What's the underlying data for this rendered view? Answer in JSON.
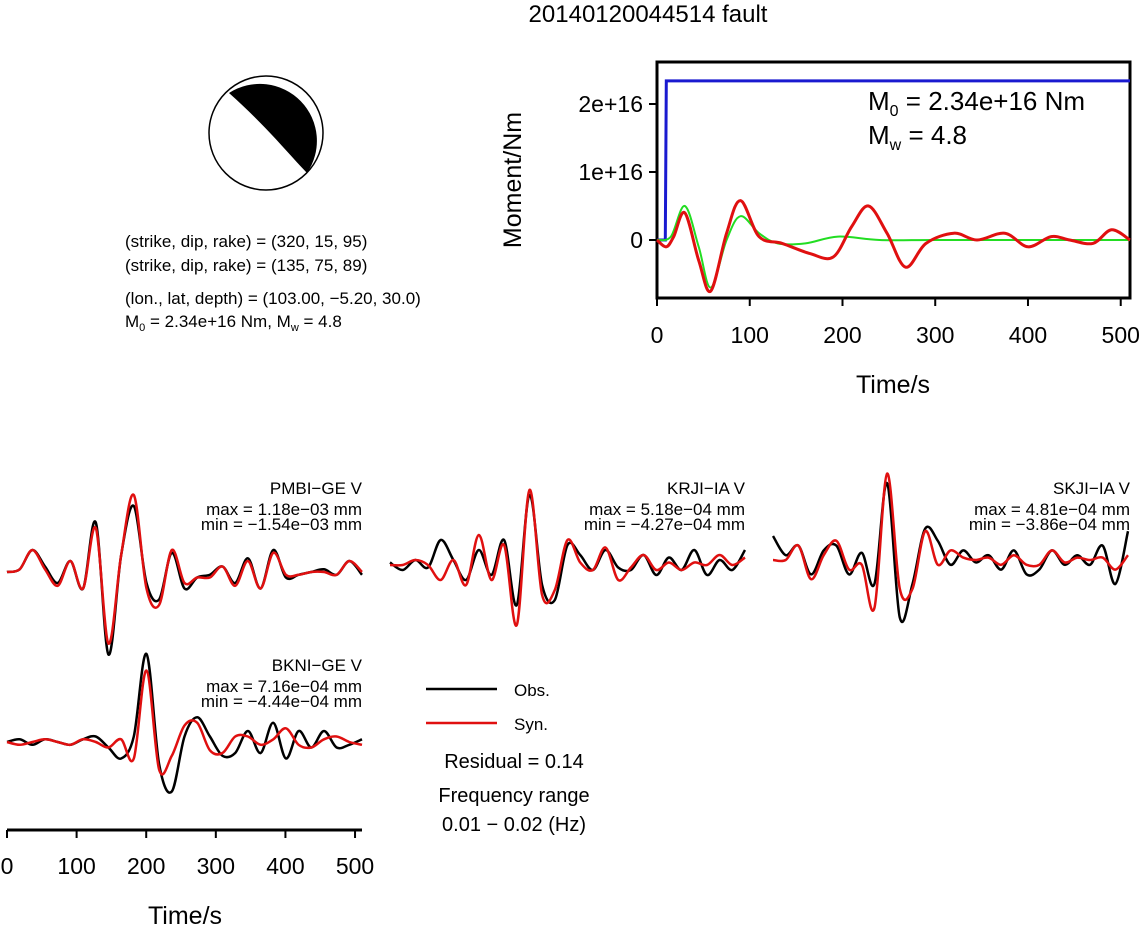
{
  "title": "20140120044514 fault",
  "beachball": {
    "plane1": "(strike, dip, rake) = (320, 15, 95)",
    "plane2": "(strike, dip, rake) = (135, 75, 89)",
    "location": "(lon., lat, depth) = (103.00, −5.20, 30.0)",
    "moment_line": {
      "m0_prefix": "M",
      "m0_sub": "0",
      "m0_value": " = 2.34e+16 Nm, M",
      "mw_sub": "w",
      "mw_value": " = 4.8"
    }
  },
  "moment_annotation": {
    "m0_prefix": "M",
    "m0_sub": "0",
    "m0_value": " = 2.34e+16 Nm",
    "mw_prefix": "M",
    "mw_sub": "w",
    "mw_value": " = 4.8"
  },
  "legend": {
    "obs": "Obs.",
    "syn": "Syn."
  },
  "residual": "Residual = 0.14",
  "freq_label": "Frequency range",
  "freq_value": "0.01 − 0.02 (Hz)",
  "colors": {
    "obs": "#000000",
    "syn": "#e01010",
    "moment": "#1a1ad0",
    "stf": "#22dd22"
  },
  "chart_data": [
    {
      "type": "line",
      "title": "",
      "xlabel": "Time/s",
      "ylabel": "Moment/Nm",
      "xlim": [
        0,
        510
      ],
      "ylim": [
        -8000000000000000.0,
        2.6e+16
      ],
      "xticks": [
        "0",
        "100",
        "200",
        "300",
        "400",
        "500"
      ],
      "yticks": [
        "0",
        "1e+16",
        "2e+16"
      ],
      "series": [
        {
          "x": [
            0,
            5,
            9,
            10,
            510
          ],
          "y": [
            0,
            0,
            0,
            2.34e+16,
            2.34e+16
          ]
        },
        {
          "x": [
            0,
            15,
            30,
            45,
            58,
            75,
            90,
            110,
            130,
            160,
            195,
            240,
            300,
            400,
            510
          ],
          "y": [
            0,
            500000000000000.0,
            5000000000000000.0,
            -1000000000000000.0,
            -7000000000000000.0,
            0,
            3500000000000000.0,
            1000000000000000.0,
            -500000000000000.0,
            -500000000000000.0,
            500000000000000.0,
            0,
            0,
            0,
            0
          ]
        },
        {
          "x": [
            0,
            10,
            18,
            30,
            45,
            58,
            75,
            90,
            110,
            135,
            165,
            190,
            210,
            228,
            248,
            268,
            290,
            320,
            345,
            375,
            400,
            425,
            445,
            470,
            490,
            510
          ],
          "y": [
            0,
            -1000000000000000.0,
            500000000000000.0,
            4000000000000000.0,
            -3000000000000000.0,
            -7500000000000000.0,
            1000000000000000.0,
            5800000000000000.0,
            500000000000000.0,
            -500000000000000.0,
            -2000000000000000.0,
            -2500000000000000.0,
            2000000000000000.0,
            5000000000000000.0,
            1000000000000000.0,
            -4000000000000000.0,
            -500000000000000.0,
            1000000000000000.0,
            0,
            1000000000000000.0,
            -1000000000000000.0,
            500000000000000.0,
            0,
            -500000000000000.0,
            1500000000000000.0,
            0
          ]
        }
      ]
    },
    {
      "type": "line",
      "xlabel": "Time/s",
      "xlim": [
        0,
        510
      ],
      "xticks": [
        "0",
        "100",
        "200",
        "300",
        "400",
        "500"
      ],
      "panels": [
        {
          "station": "PMBI−GE V",
          "max_text": "max = 1.18e−03 mm",
          "min_text": "min = −1.54e−03 mm",
          "obs": [
            0,
            0.05,
            0.4,
            0.1,
            -0.2,
            0.2,
            -0.3,
            0.9,
            -1.5,
            0.3,
            1.2,
            -0.2,
            -0.5,
            0.35,
            -0.3,
            -0.1,
            -0.05,
            0.1,
            -0.2,
            0.25,
            -0.3,
            0.4,
            -0.1,
            -0.05,
            0,
            0.05,
            -0.05,
            0.2,
            -0.05
          ],
          "syn": [
            0,
            0.05,
            0.4,
            0.05,
            -0.25,
            0.2,
            -0.3,
            0.8,
            -1.3,
            0.3,
            1.4,
            -0.3,
            -0.6,
            0.4,
            -0.2,
            -0.1,
            -0.1,
            0.1,
            -0.25,
            0.2,
            -0.3,
            0.35,
            -0.05,
            -0.05,
            0,
            0,
            -0.05,
            0.2,
            0
          ]
        },
        {
          "station": "KRJI−IA V",
          "max_text": "max = 5.18e−04 mm",
          "min_text": "min = −4.27e−04 mm",
          "obs": [
            0.05,
            -0.1,
            0.1,
            -0.05,
            0.5,
            0.1,
            -0.3,
            0.3,
            -0.2,
            0.5,
            -0.8,
            1.4,
            -0.4,
            -0.7,
            0.4,
            0.2,
            -0.1,
            0.3,
            -0.05,
            -0.1,
            0.2,
            -0.2,
            0.15,
            -0.1,
            0.3,
            -0.2,
            0.1,
            -0.1,
            0.3
          ],
          "syn": [
            0,
            0,
            0.1,
            0,
            -0.3,
            0.1,
            -0.4,
            0.6,
            -0.3,
            0.4,
            -1.2,
            1.5,
            -0.6,
            -0.5,
            0.5,
            0.05,
            -0.1,
            0.35,
            -0.3,
            -0.05,
            0.2,
            -0.1,
            0.05,
            -0.1,
            0.05,
            0,
            0.2,
            0,
            0.15
          ]
        },
        {
          "station": "SKJI−IA V",
          "max_text": "max = 4.81e−04 mm",
          "min_text": "min = −3.86e−04 mm",
          "obs": [
            0.5,
            0.1,
            0.3,
            -0.3,
            0.2,
            0.3,
            -0.3,
            0.15,
            -0.5,
            1.6,
            -1.2,
            -0.5,
            0.65,
            0.4,
            -0.1,
            0.2,
            -0.05,
            0.1,
            -0.2,
            0.2,
            -0.3,
            -0.2,
            0.2,
            -0.1,
            0.1,
            -0.1,
            0.3,
            -0.5,
            0.6
          ],
          "syn": [
            0,
            0,
            0.3,
            -0.4,
            0.1,
            0.4,
            -0.2,
            -0.1,
            -1.0,
            1.8,
            -0.6,
            -0.6,
            0.6,
            -0.1,
            0.2,
            0.05,
            0,
            0.05,
            -0.1,
            0.1,
            -0.1,
            -0.1,
            0.2,
            -0.05,
            0.05,
            0,
            0.05,
            -0.2,
            0.1
          ]
        },
        {
          "station": "BKNI−GE V",
          "max_text": "max = 7.16e−04 mm",
          "min_text": "min = −4.44e−04 mm",
          "obs": [
            0,
            0.05,
            -0.05,
            0.05,
            0,
            -0.05,
            0.05,
            0.1,
            -0.1,
            -0.3,
            0.1,
            1.6,
            -0.4,
            -0.9,
            0.1,
            0.45,
            0.1,
            -0.25,
            -0.2,
            0.2,
            -0.2,
            0.35,
            -0.3,
            0.2,
            -0.1,
            0.2,
            -0.1,
            -0.05,
            0.05
          ],
          "syn": [
            0,
            -0.05,
            0,
            0.05,
            0,
            -0.05,
            0.05,
            0,
            -0.1,
            0.05,
            -0.3,
            1.3,
            -0.5,
            -0.25,
            0.3,
            0.35,
            -0.15,
            -0.2,
            0.1,
            0.1,
            -0.05,
            0.05,
            0.25,
            -0.05,
            -0.1,
            0.05,
            0.1,
            0,
            -0.05
          ]
        }
      ]
    }
  ]
}
